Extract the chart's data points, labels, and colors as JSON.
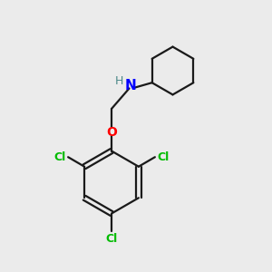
{
  "background_color": "#ebebeb",
  "bond_color": "#1a1a1a",
  "N_color": "#0000ff",
  "H_color": "#4a8888",
  "O_color": "#ff0000",
  "Cl_color": "#00bb00",
  "figsize": [
    3.0,
    3.0
  ],
  "dpi": 100,
  "xlim": [
    0,
    10
  ],
  "ylim": [
    0,
    10
  ]
}
